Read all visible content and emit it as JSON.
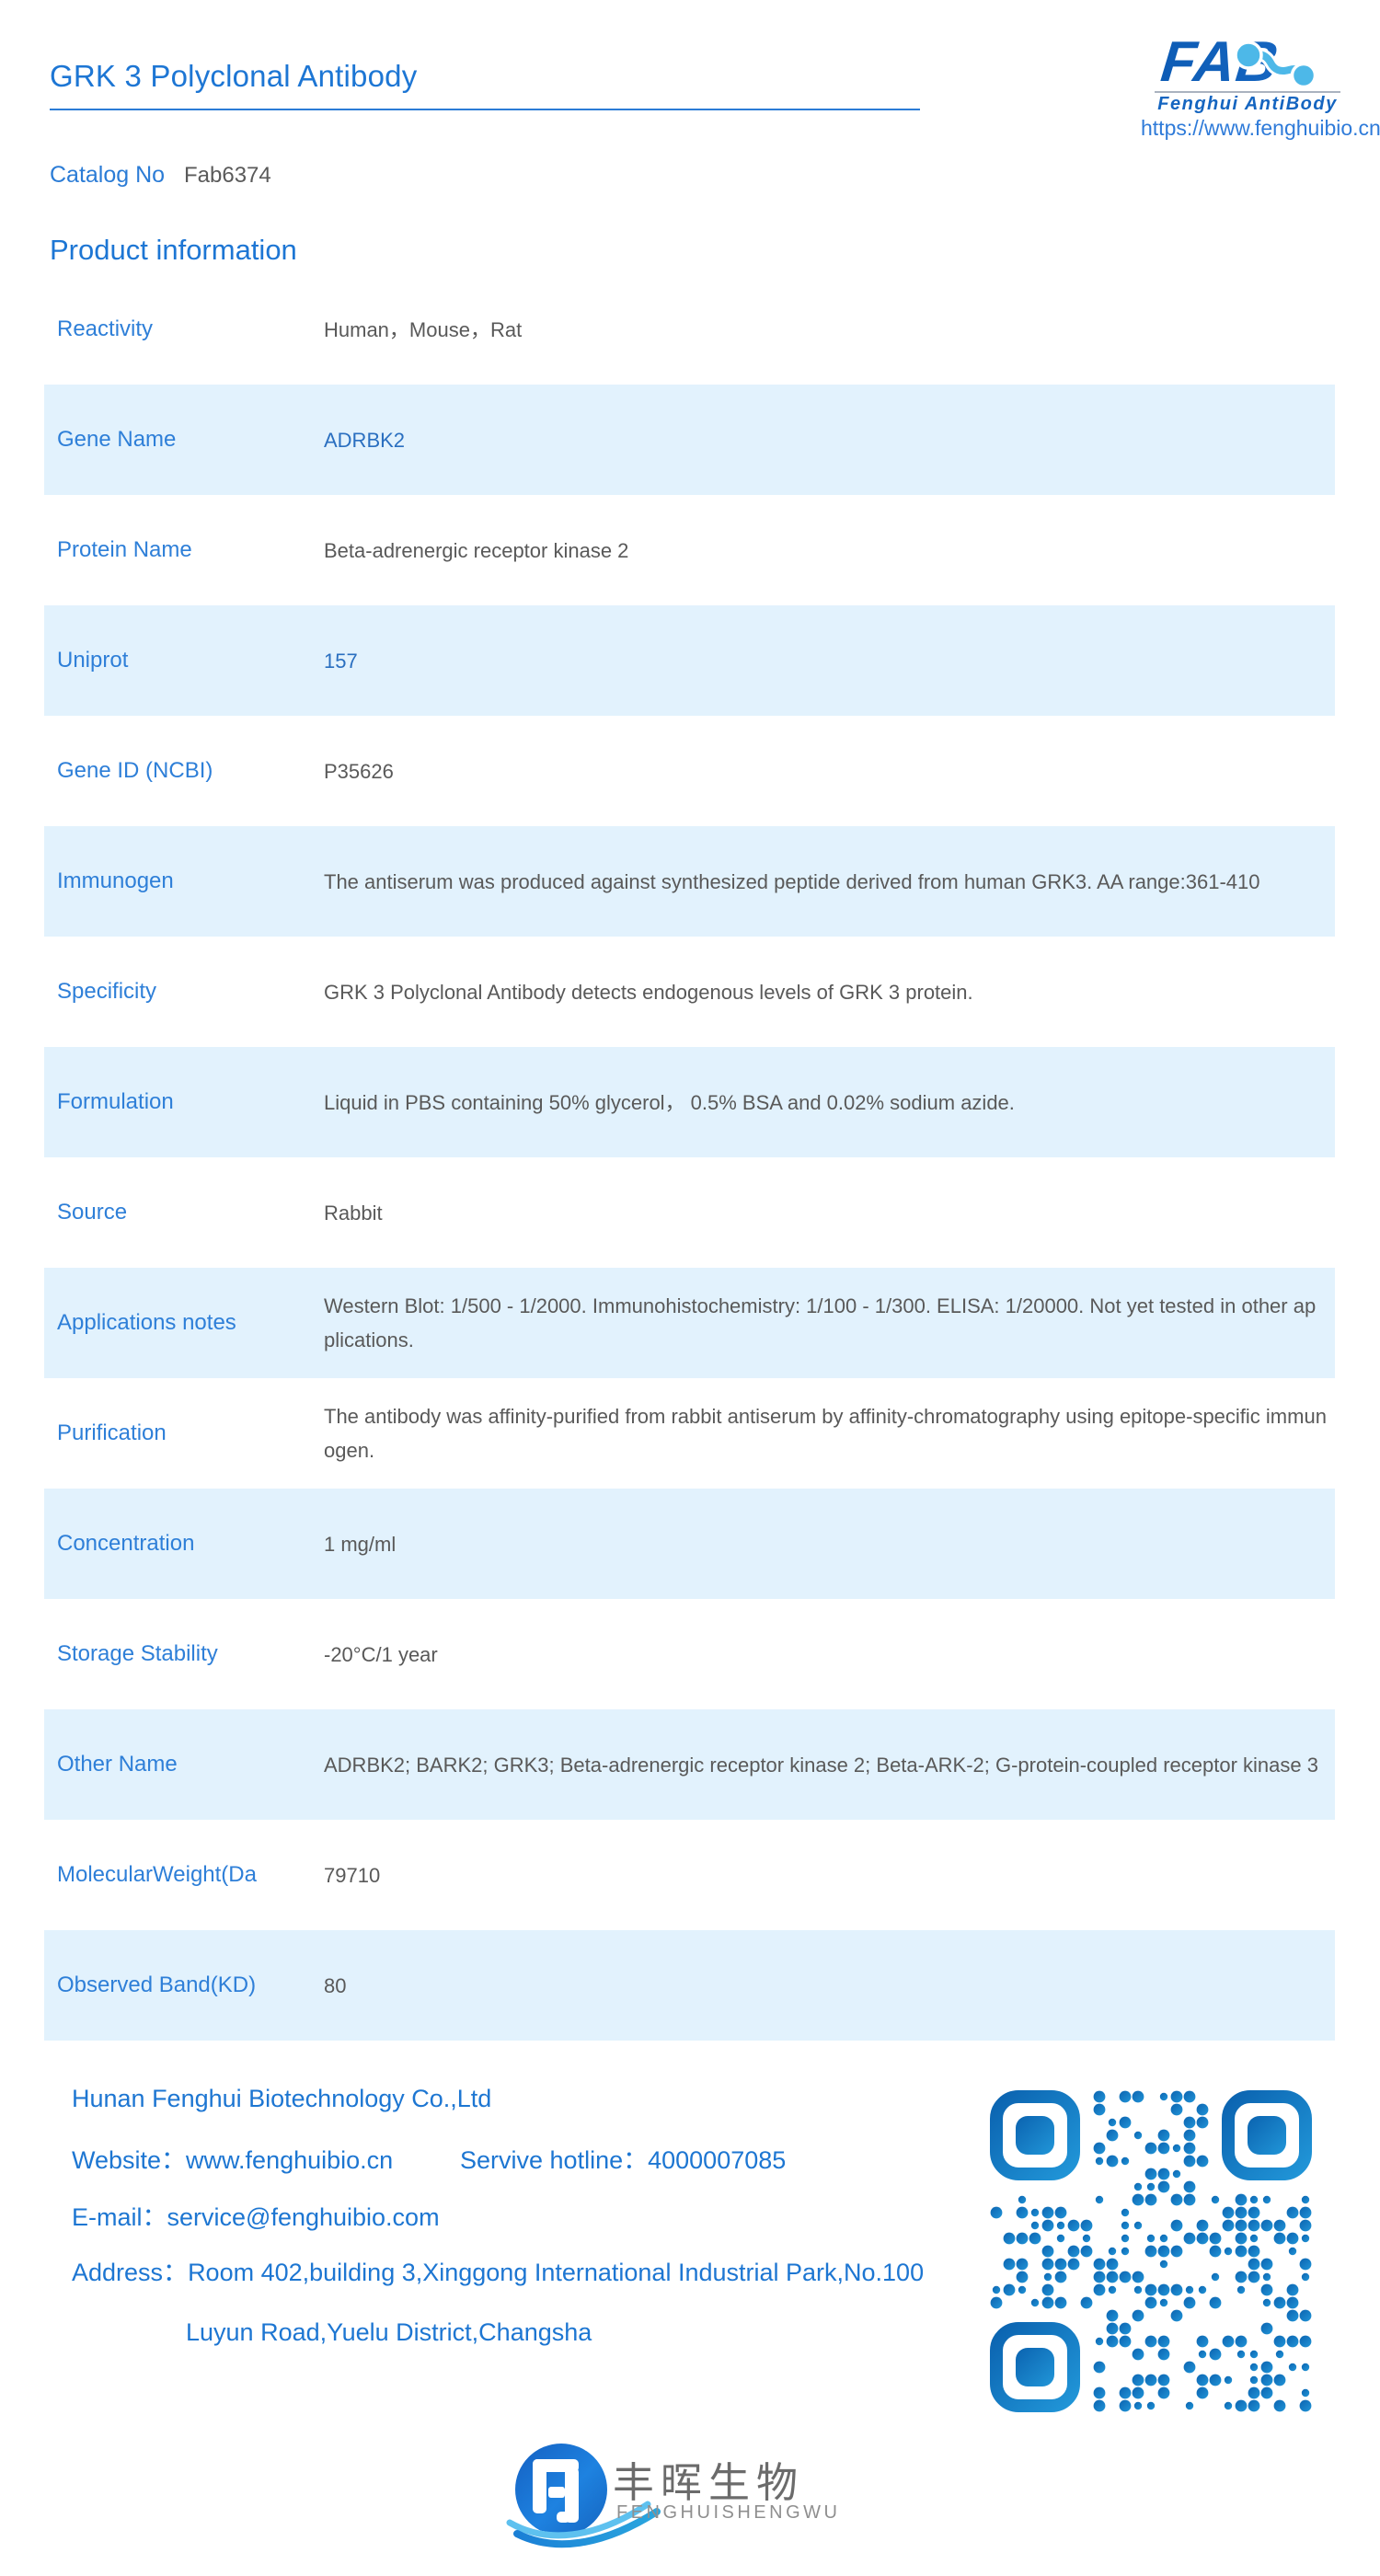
{
  "header": {
    "title": "GRK 3 Polyclonal Antibody",
    "catalog_label": "Catalog No",
    "catalog_value": "Fab6374",
    "logo": {
      "wordmark": "FAB",
      "brand": "Fenghui AntiBody",
      "url": "https://www.fenghuibio.cn"
    }
  },
  "section": {
    "title": "Product information"
  },
  "table": {
    "rows": [
      {
        "label": "Reactivity",
        "value": "Human，Mouse，Rat",
        "shaded": false,
        "link": false
      },
      {
        "label": "Gene Name",
        "value": "ADRBK2",
        "shaded": true,
        "link": true
      },
      {
        "label": "Protein Name",
        "value": "Beta-adrenergic receptor kinase 2",
        "shaded": false,
        "link": false
      },
      {
        "label": "Uniprot",
        "value": "157",
        "shaded": true,
        "link": true
      },
      {
        "label": "Gene ID (NCBI)",
        "value": "P35626",
        "shaded": false,
        "link": false
      },
      {
        "label": "Immunogen",
        "value": "The antiserum was produced against synthesized peptide derived from human GRK3. AA range:361-410",
        "shaded": true,
        "link": false
      },
      {
        "label": "Specificity",
        "value": "GRK 3 Polyclonal Antibody detects endogenous levels of GRK 3 protein.",
        "shaded": false,
        "link": false
      },
      {
        "label": "Formulation",
        "value": "Liquid in PBS containing 50% glycerol， 0.5% BSA and 0.02% sodium azide.",
        "shaded": true,
        "link": false
      },
      {
        "label": "Source",
        "value": "Rabbit",
        "shaded": false,
        "link": false
      },
      {
        "label": "Applications notes",
        "value": "Western Blot: 1/500 - 1/2000. Immunohistochemistry: 1/100 - 1/300. ELISA: 1/20000. Not yet tested in other applications.",
        "shaded": true,
        "link": false
      },
      {
        "label": "Purification",
        "value": "The antibody was affinity-purified from rabbit antiserum by affinity-chromatography using epitope-specific immunogen.",
        "shaded": false,
        "link": false
      },
      {
        "label": "Concentration",
        "value": "1 mg/ml",
        "shaded": true,
        "link": false
      },
      {
        "label": "Storage Stability",
        "value": "-20°C/1 year",
        "shaded": false,
        "link": false
      },
      {
        "label": "Other Name",
        "value": "ADRBK2; BARK2; GRK3; Beta-adrenergic receptor kinase 2; Beta-ARK-2; G-protein-coupled receptor kinase 3",
        "shaded": true,
        "link": false
      },
      {
        "label": "MolecularWeight(Da",
        "value": "79710",
        "shaded": false,
        "link": false
      },
      {
        "label": "Observed Band(KD)",
        "value": "80",
        "shaded": true,
        "link": false
      }
    ]
  },
  "footer": {
    "company": "Hunan Fenghui Biotechnology Co.,Ltd",
    "website_label": "Website：",
    "website_value": "www.fenghuibio.cn",
    "hotline_label": "Servive hotline：",
    "hotline_value": "4000007085",
    "email_label": "E-mail：",
    "email_value": "service@fenghuibio.com",
    "address_label": "Address：",
    "address_line1": "Room 402,building 3,Xinggong International Industrial Park,No.100",
    "address_line2": "Luyun Road,Yuelu District,Changsha"
  },
  "bottom_logo": {
    "cn": "丰晖生物",
    "en": "FENGHUISHENGWU"
  },
  "colors": {
    "accent_blue": "#1d76d4",
    "label_blue": "#2e7fd8",
    "row_shade": "#e2f2fd",
    "value_gray": "#595959",
    "footer_blue": "#1d76d2",
    "logo_dark_blue": "#0d5cb5",
    "logo_light_blue": "#4db8e8",
    "qr_dark": "#0b63b0",
    "qr_light": "#2196d8"
  }
}
